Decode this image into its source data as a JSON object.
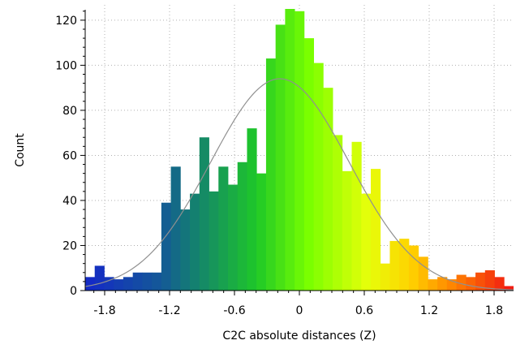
{
  "chart_data": {
    "type": "bar",
    "subtype": "histogram",
    "title": "",
    "xlabel": "C2C absolute distances (Z)",
    "ylabel": "Count",
    "xlim": [
      -1.98,
      1.98
    ],
    "ylim": [
      0,
      125
    ],
    "xticks": [
      -1.8,
      -1.2,
      -0.6,
      0,
      0.6,
      1.2,
      1.8
    ],
    "xtick_labels": [
      "-1.8",
      "-1.2",
      "-0.6",
      "0",
      "0.6",
      "1.2",
      "1.8"
    ],
    "yticks": [
      0,
      20,
      40,
      60,
      80,
      100,
      120
    ],
    "ytick_labels": [
      "0",
      "20",
      "40",
      "60",
      "80",
      "100",
      "120"
    ],
    "grid": true,
    "bin_width": 0.088,
    "bins": [
      {
        "x": -1.936,
        "count": 6
      },
      {
        "x": -1.848,
        "count": 11
      },
      {
        "x": -1.76,
        "count": 6
      },
      {
        "x": -1.672,
        "count": 5
      },
      {
        "x": -1.584,
        "count": 6
      },
      {
        "x": -1.496,
        "count": 8
      },
      {
        "x": -1.408,
        "count": 8
      },
      {
        "x": -1.32,
        "count": 8
      },
      {
        "x": -1.232,
        "count": 39
      },
      {
        "x": -1.144,
        "count": 55
      },
      {
        "x": -1.056,
        "count": 36
      },
      {
        "x": -0.968,
        "count": 43
      },
      {
        "x": -0.88,
        "count": 68
      },
      {
        "x": -0.792,
        "count": 44
      },
      {
        "x": -0.704,
        "count": 55
      },
      {
        "x": -0.616,
        "count": 47
      },
      {
        "x": -0.528,
        "count": 57
      },
      {
        "x": -0.44,
        "count": 72
      },
      {
        "x": -0.352,
        "count": 52
      },
      {
        "x": -0.264,
        "count": 103
      },
      {
        "x": -0.176,
        "count": 118
      },
      {
        "x": -0.088,
        "count": 125
      },
      {
        "x": 0.0,
        "count": 124
      },
      {
        "x": 0.088,
        "count": 112
      },
      {
        "x": 0.176,
        "count": 101
      },
      {
        "x": 0.264,
        "count": 90
      },
      {
        "x": 0.352,
        "count": 69
      },
      {
        "x": 0.44,
        "count": 53
      },
      {
        "x": 0.528,
        "count": 66
      },
      {
        "x": 0.616,
        "count": 43
      },
      {
        "x": 0.704,
        "count": 54
      },
      {
        "x": 0.792,
        "count": 12
      },
      {
        "x": 0.88,
        "count": 22
      },
      {
        "x": 0.968,
        "count": 23
      },
      {
        "x": 1.056,
        "count": 20
      },
      {
        "x": 1.144,
        "count": 15
      },
      {
        "x": 1.232,
        "count": 5
      },
      {
        "x": 1.32,
        "count": 6
      },
      {
        "x": 1.408,
        "count": 5
      },
      {
        "x": 1.496,
        "count": 7
      },
      {
        "x": 1.584,
        "count": 6
      },
      {
        "x": 1.672,
        "count": 8
      },
      {
        "x": 1.76,
        "count": 9
      },
      {
        "x": 1.848,
        "count": 6
      },
      {
        "x": 1.936,
        "count": 2
      }
    ],
    "fit_curve": {
      "type": "gaussian",
      "mean": -0.18,
      "sigma": 0.64,
      "peak": 94
    }
  }
}
